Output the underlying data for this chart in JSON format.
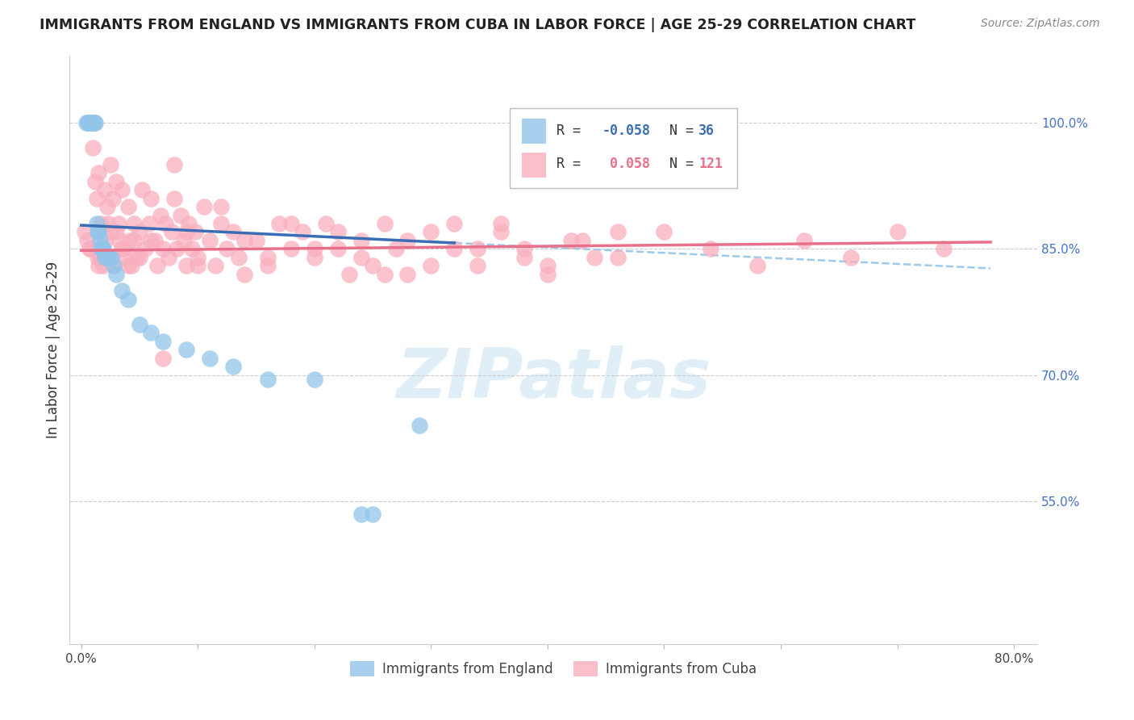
{
  "title": "IMMIGRANTS FROM ENGLAND VS IMMIGRANTS FROM CUBA IN LABOR FORCE | AGE 25-29 CORRELATION CHART",
  "source": "Source: ZipAtlas.com",
  "ylabel": "In Labor Force | Age 25-29",
  "xlim": [
    -0.01,
    0.82
  ],
  "ylim": [
    0.38,
    1.08
  ],
  "xticks": [
    0.0,
    0.1,
    0.2,
    0.3,
    0.4,
    0.5,
    0.6,
    0.7,
    0.8
  ],
  "xticklabels": [
    "0.0%",
    "",
    "",
    "",
    "",
    "",
    "",
    "",
    "80.0%"
  ],
  "right_yticks": [
    0.55,
    0.7,
    0.85,
    1.0
  ],
  "right_yticklabels": [
    "55.0%",
    "70.0%",
    "85.0%",
    "100.0%"
  ],
  "watermark": "ZIPatlas",
  "england_color": "#92C5EA",
  "cuba_color": "#F9AFBE",
  "england_trend_color": "#3B6DB5",
  "cuba_trend_color": "#E8708A",
  "england_label": "Immigrants from England",
  "cuba_label": "Immigrants from Cuba",
  "england_R": -0.058,
  "england_N": 36,
  "cuba_R": 0.058,
  "cuba_N": 121,
  "eng_x": [
    0.004,
    0.006,
    0.007,
    0.008,
    0.009,
    0.01,
    0.011,
    0.012,
    0.013,
    0.014,
    0.015,
    0.016,
    0.017,
    0.018,
    0.019,
    0.02,
    0.022,
    0.024,
    0.026,
    0.028,
    0.03,
    0.035,
    0.04,
    0.05,
    0.06,
    0.07,
    0.09,
    0.11,
    0.13,
    0.16,
    0.2,
    0.24,
    0.25,
    0.29,
    0.006,
    0.008
  ],
  "eng_y": [
    1.0,
    1.0,
    1.0,
    1.0,
    1.0,
    1.0,
    1.0,
    1.0,
    0.88,
    0.87,
    0.87,
    0.86,
    0.85,
    0.85,
    0.85,
    0.84,
    0.84,
    0.84,
    0.84,
    0.83,
    0.82,
    0.8,
    0.79,
    0.76,
    0.75,
    0.74,
    0.73,
    0.72,
    0.71,
    0.695,
    0.695,
    0.535,
    0.535,
    0.64,
    1.0,
    1.0
  ],
  "cuba_x": [
    0.003,
    0.005,
    0.007,
    0.008,
    0.01,
    0.01,
    0.012,
    0.013,
    0.014,
    0.015,
    0.016,
    0.017,
    0.018,
    0.019,
    0.02,
    0.022,
    0.023,
    0.025,
    0.025,
    0.027,
    0.028,
    0.03,
    0.032,
    0.033,
    0.035,
    0.036,
    0.038,
    0.04,
    0.042,
    0.043,
    0.045,
    0.048,
    0.05,
    0.052,
    0.055,
    0.058,
    0.06,
    0.063,
    0.065,
    0.068,
    0.07,
    0.072,
    0.075,
    0.078,
    0.08,
    0.082,
    0.085,
    0.088,
    0.09,
    0.092,
    0.095,
    0.098,
    0.1,
    0.105,
    0.11,
    0.115,
    0.12,
    0.125,
    0.13,
    0.135,
    0.14,
    0.15,
    0.16,
    0.17,
    0.18,
    0.19,
    0.2,
    0.21,
    0.22,
    0.23,
    0.24,
    0.25,
    0.26,
    0.27,
    0.28,
    0.3,
    0.32,
    0.34,
    0.36,
    0.38,
    0.4,
    0.43,
    0.46,
    0.5,
    0.54,
    0.58,
    0.62,
    0.66,
    0.7,
    0.74,
    0.015,
    0.02,
    0.025,
    0.03,
    0.035,
    0.04,
    0.045,
    0.05,
    0.06,
    0.07,
    0.08,
    0.09,
    0.1,
    0.12,
    0.14,
    0.16,
    0.18,
    0.2,
    0.22,
    0.24,
    0.26,
    0.28,
    0.3,
    0.32,
    0.34,
    0.36,
    0.38,
    0.4,
    0.42,
    0.44,
    0.46
  ],
  "cuba_y": [
    0.87,
    0.86,
    0.85,
    0.85,
    0.85,
    0.97,
    0.93,
    0.91,
    0.84,
    0.94,
    0.84,
    0.88,
    0.84,
    0.83,
    0.92,
    0.9,
    0.88,
    0.95,
    0.87,
    0.91,
    0.83,
    0.93,
    0.88,
    0.86,
    0.92,
    0.85,
    0.84,
    0.9,
    0.86,
    0.83,
    0.88,
    0.84,
    0.87,
    0.92,
    0.85,
    0.88,
    0.91,
    0.86,
    0.83,
    0.89,
    0.85,
    0.88,
    0.84,
    0.87,
    0.91,
    0.85,
    0.89,
    0.86,
    0.83,
    0.88,
    0.85,
    0.87,
    0.84,
    0.9,
    0.86,
    0.83,
    0.88,
    0.85,
    0.87,
    0.84,
    0.82,
    0.86,
    0.83,
    0.88,
    0.85,
    0.87,
    0.84,
    0.88,
    0.85,
    0.82,
    0.86,
    0.83,
    0.88,
    0.85,
    0.82,
    0.87,
    0.85,
    0.83,
    0.88,
    0.85,
    0.83,
    0.86,
    0.84,
    0.87,
    0.85,
    0.83,
    0.86,
    0.84,
    0.87,
    0.85,
    0.83,
    0.86,
    0.84,
    0.87,
    0.85,
    0.83,
    0.86,
    0.84,
    0.86,
    0.72,
    0.95,
    0.87,
    0.83,
    0.9,
    0.86,
    0.84,
    0.88,
    0.85,
    0.87,
    0.84,
    0.82,
    0.86,
    0.83,
    0.88,
    0.85,
    0.87,
    0.84,
    0.82,
    0.86,
    0.84,
    0.87
  ]
}
